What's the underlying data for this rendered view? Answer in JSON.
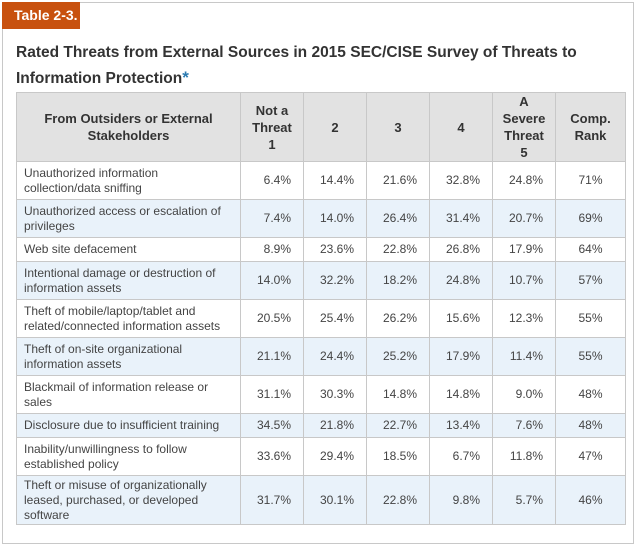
{
  "table_label": "Table 2-3.",
  "title": "Rated Threats from External Sources in 2015 SEC/CISE Survey of Threats to Information Protection",
  "title_marker": "*",
  "columns": [
    "From Outsiders or External Stakeholders",
    "Not a Threat 1",
    "2",
    "3",
    "4",
    "A Severe Threat 5",
    "Comp. Rank"
  ],
  "rows": [
    {
      "threat": "Unauthorized information collection/data sniffing",
      "v1": "6.4%",
      "v2": "14.4%",
      "v3": "21.6%",
      "v4": "32.8%",
      "v5": "24.8%",
      "rank": "71%"
    },
    {
      "threat": "Unauthorized access or escalation of privileges",
      "v1": "7.4%",
      "v2": "14.0%",
      "v3": "26.4%",
      "v4": "31.4%",
      "v5": "20.7%",
      "rank": "69%"
    },
    {
      "threat": "Web site defacement",
      "v1": "8.9%",
      "v2": "23.6%",
      "v3": "22.8%",
      "v4": "26.8%",
      "v5": "17.9%",
      "rank": "64%"
    },
    {
      "threat": "Intentional damage or destruction of information assets",
      "v1": "14.0%",
      "v2": "32.2%",
      "v3": "18.2%",
      "v4": "24.8%",
      "v5": "10.7%",
      "rank": "57%"
    },
    {
      "threat": "Theft of mobile/laptop/tablet and related/connected information assets",
      "v1": "20.5%",
      "v2": "25.4%",
      "v3": "26.2%",
      "v4": "15.6%",
      "v5": "12.3%",
      "rank": "55%"
    },
    {
      "threat": "Theft of on-site organizational information assets",
      "v1": "21.1%",
      "v2": "24.4%",
      "v3": "25.2%",
      "v4": "17.9%",
      "v5": "11.4%",
      "rank": "55%"
    },
    {
      "threat": "Blackmail of information release or sales",
      "v1": "31.1%",
      "v2": "30.3%",
      "v3": "14.8%",
      "v4": "14.8%",
      "v5": "9.0%",
      "rank": "48%"
    },
    {
      "threat": "Disclosure due to insufficient training",
      "v1": "34.5%",
      "v2": "21.8%",
      "v3": "22.7%",
      "v4": "13.4%",
      "v5": "7.6%",
      "rank": "48%"
    },
    {
      "threat": "Inability/unwillingness to follow established policy",
      "v1": "33.6%",
      "v2": "29.4%",
      "v3": "18.5%",
      "v4": "6.7%",
      "v5": "11.8%",
      "rank": "47%"
    },
    {
      "threat": "Theft or misuse of organizationally leased, purchased, or developed software",
      "v1": "31.7%",
      "v2": "30.1%",
      "v3": "22.8%",
      "v4": "9.8%",
      "v5": "5.7%",
      "rank": "46%"
    }
  ]
}
